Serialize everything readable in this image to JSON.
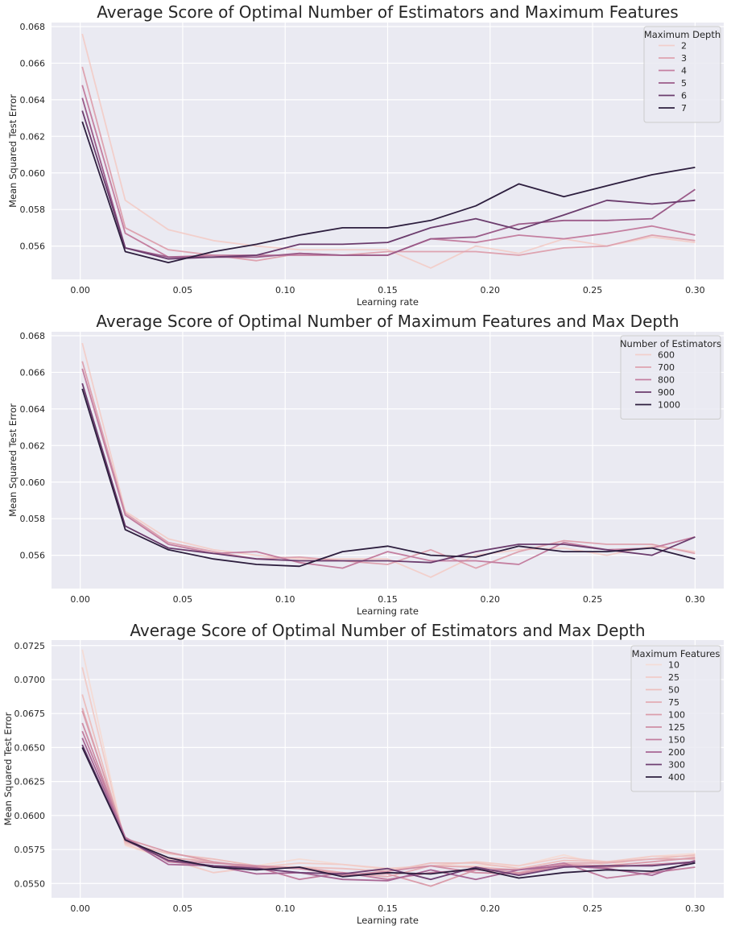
{
  "colors": {
    "background": "#eaeaf2",
    "grid": "#ffffff",
    "text": "#262626",
    "legend_frame": "#cccccc"
  },
  "chart_data": [
    {
      "type": "line",
      "title": "Average Score of Optimal Number of Estimators and Maximum Features",
      "xlabel": "Learning rate",
      "ylabel": "Mean Squared Test Error",
      "xlim": [
        -0.014,
        0.314
      ],
      "ylim": [
        0.05418,
        0.06822
      ],
      "xticks": [
        0.0,
        0.05,
        0.1,
        0.15,
        0.2,
        0.25,
        0.3
      ],
      "xtick_labels": [
        "0.00",
        "0.05",
        "0.10",
        "0.15",
        "0.20",
        "0.25",
        "0.30"
      ],
      "yticks": [
        0.056,
        0.058,
        0.06,
        0.062,
        0.064,
        0.066,
        0.068
      ],
      "ytick_labels": [
        "0.056",
        "0.058",
        "0.060",
        "0.062",
        "0.064",
        "0.066",
        "0.068"
      ],
      "grid": true,
      "legend_title": "Maximum Depth",
      "legend_position": "top-right",
      "x": [
        0.001,
        0.022,
        0.043,
        0.065,
        0.086,
        0.107,
        0.128,
        0.15,
        0.171,
        0.193,
        0.214,
        0.236,
        0.257,
        0.279,
        0.3
      ],
      "series": [
        {
          "name": "2",
          "color": "#f2cfcb",
          "values": [
            0.0676,
            0.0585,
            0.0569,
            0.0563,
            0.056,
            0.0558,
            0.0558,
            0.0558,
            0.0548,
            0.056,
            0.0556,
            0.0564,
            0.056,
            0.0565,
            0.0562
          ]
        },
        {
          "name": "3",
          "color": "#dea3b0",
          "values": [
            0.0658,
            0.057,
            0.0558,
            0.0555,
            0.0552,
            0.0556,
            0.0555,
            0.0557,
            0.0557,
            0.0557,
            0.0555,
            0.0559,
            0.056,
            0.0566,
            0.0563
          ]
        },
        {
          "name": "4",
          "color": "#c47fa0",
          "values": [
            0.0648,
            0.0567,
            0.0554,
            0.0555,
            0.0555,
            0.0555,
            0.0555,
            0.0555,
            0.0564,
            0.0562,
            0.0566,
            0.0564,
            0.0567,
            0.0571,
            0.0566
          ]
        },
        {
          "name": "5",
          "color": "#9b5b89",
          "values": [
            0.0641,
            0.0559,
            0.0554,
            0.0554,
            0.0554,
            0.0556,
            0.0555,
            0.0555,
            0.0564,
            0.0565,
            0.0572,
            0.0574,
            0.0574,
            0.0575,
            0.0591
          ]
        },
        {
          "name": "6",
          "color": "#6b3c6d",
          "values": [
            0.0634,
            0.0559,
            0.0553,
            0.0554,
            0.0555,
            0.0561,
            0.0561,
            0.0562,
            0.057,
            0.0575,
            0.0569,
            0.0577,
            0.0585,
            0.0583,
            0.0585
          ]
        },
        {
          "name": "7",
          "color": "#2d1e3e",
          "values": [
            0.0628,
            0.0557,
            0.0551,
            0.0557,
            0.0561,
            0.0566,
            0.057,
            0.057,
            0.0574,
            0.0582,
            0.0594,
            0.0587,
            0.0593,
            0.0599,
            0.0603
          ]
        }
      ]
    },
    {
      "type": "line",
      "title": "Average Score of Optimal Number of Maximum Features and Max Depth",
      "xlabel": "Learning rate",
      "ylabel": "Mean Squared Test Error",
      "xlim": [
        -0.014,
        0.314
      ],
      "ylim": [
        0.05418,
        0.06822
      ],
      "xticks": [
        0.0,
        0.05,
        0.1,
        0.15,
        0.2,
        0.25,
        0.3
      ],
      "xtick_labels": [
        "0.00",
        "0.05",
        "0.10",
        "0.15",
        "0.20",
        "0.25",
        "0.30"
      ],
      "yticks": [
        0.056,
        0.058,
        0.06,
        0.062,
        0.064,
        0.066,
        0.068
      ],
      "ytick_labels": [
        "0.056",
        "0.058",
        "0.060",
        "0.062",
        "0.064",
        "0.066",
        "0.068"
      ],
      "grid": true,
      "legend_title": "Number of Estimators",
      "legend_position": "top-right",
      "x": [
        0.001,
        0.022,
        0.043,
        0.065,
        0.086,
        0.107,
        0.128,
        0.15,
        0.171,
        0.193,
        0.214,
        0.236,
        0.257,
        0.279,
        0.3
      ],
      "series": [
        {
          "name": "600",
          "color": "#f2cfcb",
          "values": [
            0.0676,
            0.0584,
            0.0569,
            0.0563,
            0.056,
            0.0558,
            0.0558,
            0.0558,
            0.0548,
            0.056,
            0.0563,
            0.0564,
            0.056,
            0.0565,
            0.0562
          ]
        },
        {
          "name": "700",
          "color": "#dea3b0",
          "values": [
            0.0666,
            0.0583,
            0.0567,
            0.0562,
            0.0558,
            0.0559,
            0.0557,
            0.0555,
            0.0563,
            0.0553,
            0.0562,
            0.0568,
            0.0566,
            0.0566,
            0.0561
          ]
        },
        {
          "name": "800",
          "color": "#c47fa0",
          "values": [
            0.0662,
            0.0582,
            0.0566,
            0.0561,
            0.0562,
            0.0556,
            0.0553,
            0.0562,
            0.0557,
            0.0557,
            0.0555,
            0.0567,
            0.0563,
            0.0564,
            0.057
          ]
        },
        {
          "name": "900",
          "color": "#6b3c6d",
          "values": [
            0.0654,
            0.0576,
            0.0564,
            0.0561,
            0.0558,
            0.0557,
            0.0557,
            0.0557,
            0.0556,
            0.0562,
            0.0566,
            0.0566,
            0.0563,
            0.056,
            0.057
          ]
        },
        {
          "name": "1000",
          "color": "#2d1e3e",
          "values": [
            0.0651,
            0.0574,
            0.0563,
            0.0558,
            0.0555,
            0.0554,
            0.0562,
            0.0565,
            0.056,
            0.0559,
            0.0565,
            0.0562,
            0.0562,
            0.0564,
            0.0558
          ]
        }
      ]
    },
    {
      "type": "line",
      "title": "Average Score of Optimal Number of Estimators and Max Depth",
      "xlabel": "Learning rate",
      "ylabel": "Mean Squared Test Error",
      "xlim": [
        -0.014,
        0.314
      ],
      "ylim": [
        0.05395,
        0.0729
      ],
      "xticks": [
        0.0,
        0.05,
        0.1,
        0.15,
        0.2,
        0.25,
        0.3
      ],
      "xtick_labels": [
        "0.00",
        "0.05",
        "0.10",
        "0.15",
        "0.20",
        "0.25",
        "0.30"
      ],
      "yticks": [
        0.055,
        0.0575,
        0.06,
        0.0625,
        0.065,
        0.0675,
        0.07,
        0.0725
      ],
      "ytick_labels": [
        "0.0550",
        "0.0575",
        "0.0600",
        "0.0625",
        "0.0650",
        "0.0675",
        "0.0700",
        "0.0725"
      ],
      "grid": true,
      "legend_title": "Maximum Features",
      "legend_position": "top-right",
      "x": [
        0.001,
        0.022,
        0.043,
        0.065,
        0.086,
        0.107,
        0.128,
        0.15,
        0.171,
        0.193,
        0.214,
        0.236,
        0.257,
        0.279,
        0.3
      ],
      "series": [
        {
          "name": "10",
          "color": "#f4dcd6",
          "values": [
            0.0722,
            0.0578,
            0.0568,
            0.0568,
            0.0563,
            0.0568,
            0.0564,
            0.056,
            0.0563,
            0.0563,
            0.0563,
            0.0571,
            0.0563,
            0.057,
            0.0572
          ]
        },
        {
          "name": "25",
          "color": "#f1ccc8",
          "values": [
            0.0709,
            0.0579,
            0.0568,
            0.0558,
            0.0562,
            0.0565,
            0.0564,
            0.0561,
            0.0563,
            0.0566,
            0.0563,
            0.0569,
            0.0566,
            0.057,
            0.057
          ]
        },
        {
          "name": "50",
          "color": "#ecbfbe",
          "values": [
            0.0689,
            0.058,
            0.0572,
            0.0568,
            0.0563,
            0.0562,
            0.0561,
            0.0559,
            0.0565,
            0.0565,
            0.0561,
            0.0567,
            0.0566,
            0.0568,
            0.0571
          ]
        },
        {
          "name": "75",
          "color": "#e3adb4",
          "values": [
            0.0679,
            0.0581,
            0.0569,
            0.0566,
            0.0561,
            0.0562,
            0.0558,
            0.0555,
            0.0563,
            0.0562,
            0.056,
            0.0565,
            0.0565,
            0.0568,
            0.0568
          ]
        },
        {
          "name": "100",
          "color": "#da9dab",
          "values": [
            0.0677,
            0.0583,
            0.0573,
            0.0566,
            0.0562,
            0.0561,
            0.0557,
            0.0557,
            0.0548,
            0.056,
            0.0558,
            0.0564,
            0.0563,
            0.0566,
            0.0569
          ]
        },
        {
          "name": "125",
          "color": "#cf8ea5",
          "values": [
            0.0668,
            0.0583,
            0.0567,
            0.0565,
            0.0563,
            0.0561,
            0.0556,
            0.0559,
            0.0563,
            0.0558,
            0.0557,
            0.0563,
            0.0562,
            0.0564,
            0.0566
          ]
        },
        {
          "name": "150",
          "color": "#c27e9f",
          "values": [
            0.0662,
            0.0584,
            0.0566,
            0.0563,
            0.0562,
            0.0553,
            0.0558,
            0.0553,
            0.0558,
            0.056,
            0.056,
            0.0565,
            0.0554,
            0.0558,
            0.0562
          ]
        },
        {
          "name": "200",
          "color": "#a86694",
          "values": [
            0.0657,
            0.0583,
            0.0564,
            0.0563,
            0.0557,
            0.0558,
            0.0553,
            0.0552,
            0.056,
            0.0553,
            0.056,
            0.0563,
            0.0561,
            0.0556,
            0.0567
          ]
        },
        {
          "name": "300",
          "color": "#6e3f72",
          "values": [
            0.0652,
            0.0582,
            0.0567,
            0.0563,
            0.0561,
            0.0558,
            0.0557,
            0.0561,
            0.0553,
            0.0562,
            0.0556,
            0.0562,
            0.0563,
            0.0563,
            0.0566
          ]
        },
        {
          "name": "400",
          "color": "#2d1e3e",
          "values": [
            0.065,
            0.0582,
            0.0569,
            0.0562,
            0.056,
            0.0562,
            0.0555,
            0.0558,
            0.0557,
            0.0561,
            0.0554,
            0.0558,
            0.056,
            0.0559,
            0.0565
          ]
        }
      ]
    }
  ]
}
